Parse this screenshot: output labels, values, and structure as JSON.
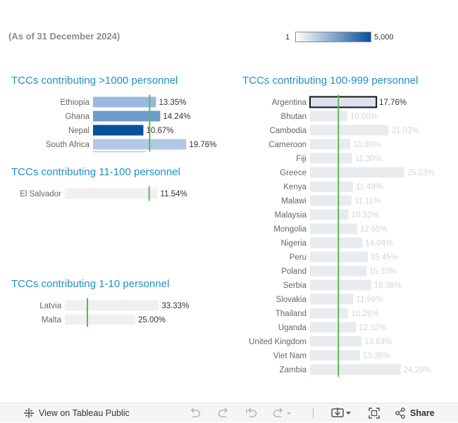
{
  "subtitle": "(As of 31 December 2024)",
  "legend": {
    "min_label": "1",
    "max_label": "5,000"
  },
  "colors": {
    "title": "#1f8fc8",
    "reference_line": "#5cb85c",
    "muted_bar": "#e8ecee",
    "muted_text": "#d3d6d8"
  },
  "chart_data": [
    {
      "type": "bar",
      "orientation": "horizontal",
      "title": "TCCs contributing >1000 personnel",
      "categories": [
        "Ethiopia",
        "Ghana",
        "Nepal",
        "South Africa"
      ],
      "values": [
        13.35,
        14.24,
        10.67,
        19.76
      ],
      "labels": [
        "13.35%",
        "14.24%",
        "10.67%",
        "19.76%"
      ],
      "colors": [
        "#9ab9dc",
        "#6d9ccd",
        "#08519c",
        "#b1c9e4"
      ],
      "reference_line": 12.0,
      "highlight_index": null,
      "muted": false,
      "xlim": [
        0,
        20
      ]
    },
    {
      "type": "bar",
      "orientation": "horizontal",
      "title": "TCCs contributing 11-100 personnel",
      "categories": [
        "El Salvador"
      ],
      "values": [
        11.54
      ],
      "labels": [
        "11.54%"
      ],
      "colors": [
        "#f0f0f0"
      ],
      "reference_line": 10.5,
      "highlight_index": null,
      "muted": false,
      "xlim": [
        0,
        20
      ]
    },
    {
      "type": "bar",
      "orientation": "horizontal",
      "title": "TCCs contributing 1-10 personnel",
      "categories": [
        "Latvia",
        "Malta"
      ],
      "values": [
        33.33,
        25.0
      ],
      "labels": [
        "33.33%",
        "25.00%"
      ],
      "colors": [
        "#f0f0f0",
        "#f0f0f0"
      ],
      "reference_line": 8.0,
      "highlight_index": null,
      "muted": false,
      "xlim": [
        0,
        40
      ]
    },
    {
      "type": "bar",
      "orientation": "horizontal",
      "title": "TCCs contributing 100-999 personnel",
      "categories": [
        "Argentina",
        "Bhutan",
        "Cambodia",
        "Cameroon",
        "Fiji",
        "Greece",
        "Kenya",
        "Malawi",
        "Malaysia",
        "Mongolia",
        "Nigeria",
        "Peru",
        "Poland",
        "Serbia",
        "Slovakia",
        "Thailand",
        "Uganda",
        "United Kingdom",
        "Viet Nam",
        "Zambia"
      ],
      "values": [
        17.76,
        10.0,
        21.03,
        10.8,
        11.3,
        25.23,
        11.49,
        11.11,
        10.32,
        12.65,
        14.04,
        15.45,
        15.1,
        16.36,
        11.59,
        10.26,
        12.32,
        13.83,
        13.36,
        24.29
      ],
      "labels": [
        "17.76%",
        "10.00%",
        "21.03%",
        "10.80%",
        "11.30%",
        "25.23%",
        "11.49%",
        "11.11%",
        "10.32%",
        "12.65%",
        "14.04%",
        "15.45%",
        "15.10%",
        "16.36%",
        "11.59%",
        "10.26%",
        "12.32%",
        "13.83%",
        "13.36%",
        "24.29%"
      ],
      "colors": [
        "#dde3ec"
      ],
      "reference_line": 7.6,
      "highlight_index": 0,
      "muted": true,
      "xlim": [
        0,
        28
      ]
    }
  ],
  "toolbar": {
    "view_label": "View on Tableau Public",
    "share_label": "Share",
    "icons": [
      "tableau-icon",
      "undo-icon",
      "redo-icon",
      "revert-icon",
      "refresh-icon",
      "download-icon",
      "fullscreen-icon",
      "share-icon"
    ]
  }
}
